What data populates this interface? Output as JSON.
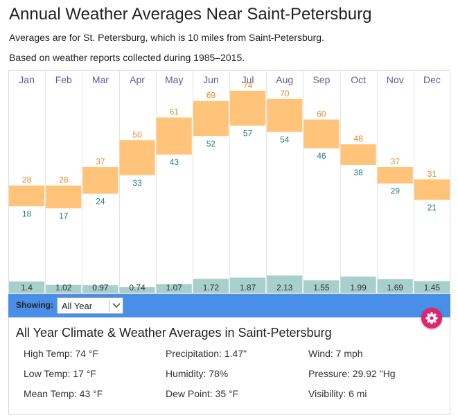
{
  "header": {
    "title": "Annual Weather Averages Near Saint-Petersburg",
    "subtitle_location": "Averages are for St. Petersburg, which is 10 miles from Saint-Petersburg.",
    "subtitle_period": "Based on weather reports collected during 1985–2015."
  },
  "colors": {
    "temp_bar": "#ffc47a",
    "high_label": "#e0892a",
    "low_label": "#1b7f86",
    "precip_bar": "#a7cfcb",
    "month_label": "#5a5aa0",
    "showing_bar": "#4a8fe7",
    "gear_button": "#e0246e"
  },
  "chart_data": {
    "type": "bar",
    "categories": [
      "Jan",
      "Feb",
      "Mar",
      "Apr",
      "May",
      "Jun",
      "Jul",
      "Aug",
      "Sep",
      "Oct",
      "Nov",
      "Dec"
    ],
    "series": [
      {
        "name": "High Temp (°F)",
        "values": [
          28,
          28,
          37,
          50,
          61,
          69,
          74,
          70,
          60,
          48,
          37,
          31
        ]
      },
      {
        "name": "Low Temp (°F)",
        "values": [
          18,
          17,
          24,
          33,
          43,
          52,
          57,
          54,
          46,
          38,
          29,
          21
        ]
      },
      {
        "name": "Precipitation (in)",
        "values": [
          1.4,
          1.02,
          0.97,
          0.74,
          1.07,
          1.72,
          1.87,
          2.13,
          1.55,
          1.99,
          1.69,
          1.45
        ]
      }
    ],
    "precip_labels": [
      "1.4",
      "1.02",
      "0.97",
      "0.74",
      "1.07",
      "1.72",
      "1.87",
      "2.13",
      "1.55",
      "1.99",
      "1.69",
      "1.45"
    ],
    "temp_range": [
      0,
      80
    ],
    "precip_range": [
      0,
      2.5
    ],
    "grid": true,
    "title": "",
    "xlabel": "",
    "ylabel": ""
  },
  "controls": {
    "showing_label": "Showing:",
    "period_value": "All Year"
  },
  "summary": {
    "title": "All Year Climate & Weather Averages in Saint-Petersburg",
    "stats": {
      "high": "High Temp: 74 °F",
      "low": "Low Temp: 17 °F",
      "mean": "Mean Temp: 43 °F",
      "precip": "Precipitation: 1.47\"",
      "humidity": "Humidity: 78%",
      "dew": "Dew Point: 35 °F",
      "wind": "Wind: 7 mph",
      "pressure": "Pressure: 29.92 \"Hg",
      "visibility": "Visibility: 6 mi"
    }
  }
}
